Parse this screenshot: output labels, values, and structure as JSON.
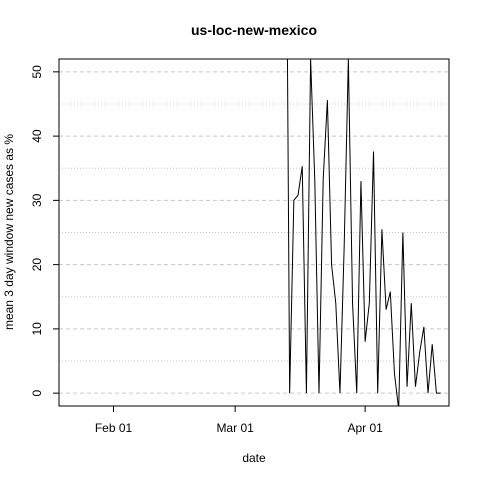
{
  "chart_data": {
    "type": "line",
    "title": "us-loc-new-mexico",
    "xlabel": "date",
    "ylabel": "mean  3  day window new cases as %",
    "x_tick_labels": [
      {
        "label": "Feb 01",
        "date": "2020-02-01"
      },
      {
        "label": "Mar 01",
        "date": "2020-03-01"
      },
      {
        "label": "Apr 01",
        "date": "2020-04-01"
      }
    ],
    "y_ticks": [
      0,
      10,
      20,
      30,
      40,
      50
    ],
    "y_minor_ticks": [
      5,
      15,
      25,
      35,
      45
    ],
    "xlim": [
      "2020-01-19",
      "2020-04-21"
    ],
    "ylim": [
      -2,
      52
    ],
    "grid": true,
    "series": [
      {
        "x": [
          "2020-03-13",
          "2020-03-14",
          "2020-03-15",
          "2020-03-16",
          "2020-03-17",
          "2020-03-18",
          "2020-03-19",
          "2020-03-20",
          "2020-03-21",
          "2020-03-22",
          "2020-03-23",
          "2020-03-24",
          "2020-03-25",
          "2020-03-26",
          "2020-03-27",
          "2020-03-28",
          "2020-03-29",
          "2020-03-30",
          "2020-03-31",
          "2020-04-01",
          "2020-04-02",
          "2020-04-03",
          "2020-04-04",
          "2020-04-05",
          "2020-04-06",
          "2020-04-07",
          "2020-04-08",
          "2020-04-09",
          "2020-04-10",
          "2020-04-11",
          "2020-04-12",
          "2020-04-13",
          "2020-04-14",
          "2020-04-15",
          "2020-04-16",
          "2020-04-17",
          "2020-04-18",
          "2020-04-19"
        ],
        "y": [
          100,
          0,
          30,
          30.8,
          35.3,
          0,
          52,
          33,
          0,
          33.3,
          45.6,
          20,
          14,
          0,
          22.7,
          52,
          14,
          0,
          33,
          8,
          14,
          37.6,
          0,
          25.5,
          13,
          15.8,
          3,
          -2.5,
          25,
          1,
          14,
          1,
          6.3,
          10.3,
          0,
          7.6,
          0,
          0
        ]
      }
    ]
  }
}
